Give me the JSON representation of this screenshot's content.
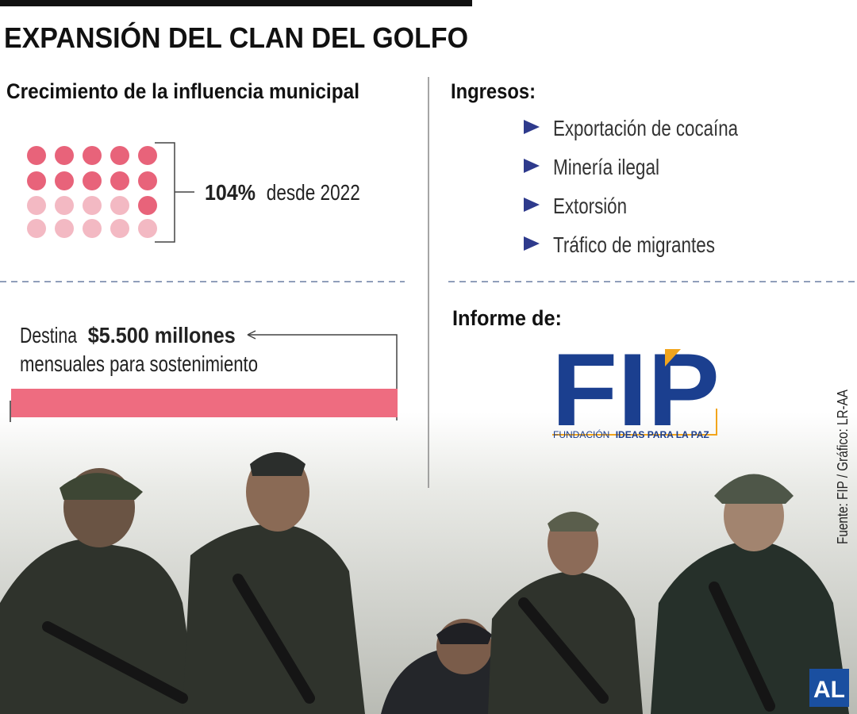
{
  "header": {
    "title": "EXPANSIÓN DEL CLAN DEL GOLFO"
  },
  "growth": {
    "heading": "Crecimiento de la influencia municipal",
    "figure": "104%",
    "since": "desde 2022"
  },
  "funding": {
    "lead": "Destina",
    "amount": "$5.500 millones",
    "rest": "mensuales para sostenimiento"
  },
  "income": {
    "heading": "Ingresos:",
    "items": [
      "Exportación de cocaína",
      "Minería ilegal",
      "Extorsión",
      "Tráfico de migrantes"
    ]
  },
  "report": {
    "heading": "Informe de:",
    "logo": "FIP",
    "org_a": "FUNDACIÓN",
    "org_b": "IDEAS PARA LA PAZ"
  },
  "source": "Fuente: FIP / Gráfico: LR-AA",
  "brand": "AL"
}
